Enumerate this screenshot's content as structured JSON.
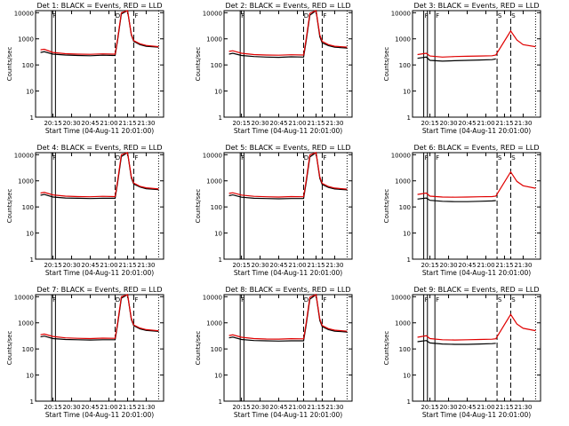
{
  "colors": {
    "events": "#000000",
    "lld": "#e00000",
    "axes": "#000000",
    "background": "#ffffff"
  },
  "chart_data": [
    {
      "type": "line",
      "title": "Det 1: BLACK = Events, RED = LLD",
      "xlabel": "Start Time (04-Aug-11 20:01:00)",
      "ylabel": "Counts/sec",
      "xlim": [
        "20:01",
        "21:44"
      ],
      "ylim": [
        1,
        12000
      ],
      "yscale": "log",
      "xticks": [
        "20:15",
        "20:30",
        "20:45",
        "21:00",
        "21:15",
        "21:30"
      ],
      "yticks": [
        "1",
        "10",
        "100",
        "1000",
        "10000"
      ],
      "markers": [
        "F",
        "D",
        "F"
      ],
      "series": [
        {
          "name": "Events",
          "x": [
            "20:05",
            "20:08",
            "20:15",
            "20:25",
            "20:35",
            "20:45",
            "20:55",
            "21:05",
            "21:07",
            "21:10",
            "21:15",
            "21:18",
            "21:20",
            "21:25",
            "21:30",
            "21:40"
          ],
          "y": [
            300,
            320,
            260,
            240,
            230,
            225,
            235,
            230,
            900,
            9000,
            12000,
            1400,
            800,
            600,
            520,
            480
          ]
        },
        {
          "name": "LLD",
          "x": [
            "20:05",
            "20:08",
            "20:15",
            "20:25",
            "20:35",
            "20:45",
            "20:55",
            "21:05",
            "21:07",
            "21:10",
            "21:15",
            "21:18",
            "21:20",
            "21:25",
            "21:30",
            "21:40"
          ],
          "y": [
            380,
            400,
            300,
            270,
            260,
            255,
            265,
            260,
            1000,
            10000,
            12000,
            1500,
            850,
            650,
            560,
            500
          ]
        }
      ],
      "dashed_lines": [
        "21:05",
        "21:20",
        "21:40"
      ],
      "solid_lines": [
        "20:14",
        "20:17"
      ]
    },
    {
      "type": "line",
      "title": "Det 2: BLACK = Events, RED = LLD",
      "xlabel": "Start Time (04-Aug-11 20:01:00)",
      "ylabel": "Counts/sec",
      "xlim": [
        "20:01",
        "21:44"
      ],
      "ylim": [
        1,
        12000
      ],
      "yscale": "log",
      "xticks": [
        "20:15",
        "20:30",
        "20:45",
        "21:00",
        "21:15",
        "21:30"
      ],
      "yticks": [
        "1",
        "10",
        "100",
        "1000",
        "10000"
      ],
      "markers": [
        "F",
        "D",
        "F"
      ],
      "series": [
        {
          "name": "Events",
          "x": [
            "20:05",
            "20:08",
            "20:15",
            "20:25",
            "20:35",
            "20:45",
            "20:55",
            "21:05",
            "21:07",
            "21:10",
            "21:15",
            "21:18",
            "21:20",
            "21:25",
            "21:30",
            "21:40"
          ],
          "y": [
            260,
            280,
            230,
            210,
            200,
            195,
            205,
            200,
            800,
            8000,
            12000,
            1200,
            700,
            550,
            480,
            440
          ]
        },
        {
          "name": "LLD",
          "x": [
            "20:05",
            "20:08",
            "20:15",
            "20:25",
            "20:35",
            "20:45",
            "20:55",
            "21:05",
            "21:07",
            "21:10",
            "21:15",
            "21:18",
            "21:20",
            "21:25",
            "21:30",
            "21:40"
          ],
          "y": [
            330,
            350,
            280,
            250,
            240,
            235,
            245,
            240,
            950,
            9500,
            12000,
            1400,
            800,
            600,
            520,
            480
          ]
        }
      ],
      "dashed_lines": [
        "21:05",
        "21:20",
        "21:40"
      ],
      "solid_lines": [
        "20:14",
        "20:17"
      ]
    },
    {
      "type": "line",
      "title": "Det 3: BLACK = Events, RED = LLD",
      "xlabel": "Start Time (04-Aug-11 20:01:00)",
      "ylabel": "Counts/sec",
      "xlim": [
        "20:01",
        "21:44"
      ],
      "ylim": [
        1,
        12000
      ],
      "yscale": "log",
      "xticks": [
        "20:15",
        "20:30",
        "20:45",
        "21:00",
        "21:15",
        "21:30"
      ],
      "yticks": [
        "1",
        "10",
        "100",
        "1000",
        "10000"
      ],
      "markers": [
        "F",
        "F",
        "S",
        "S"
      ],
      "series": [
        {
          "name": "Events",
          "x": [
            "20:05",
            "20:12",
            "20:15",
            "20:25",
            "20:35",
            "20:45",
            "20:55",
            "21:05",
            "21:08"
          ],
          "y": [
            180,
            200,
            150,
            140,
            145,
            150,
            155,
            160,
            170
          ]
        },
        {
          "name": "LLD",
          "x": [
            "20:05",
            "20:12",
            "20:15",
            "20:25",
            "20:35",
            "20:45",
            "20:55",
            "21:05",
            "21:08",
            "21:20",
            "21:25",
            "21:30",
            "21:40"
          ],
          "y": [
            250,
            280,
            220,
            200,
            210,
            215,
            220,
            225,
            240,
            2000,
            900,
            600,
            500
          ]
        }
      ],
      "dashed_lines": [
        "21:09",
        "21:20",
        "21:40"
      ],
      "solid_lines": [
        "20:10",
        "20:13",
        "20:19"
      ]
    },
    {
      "type": "line",
      "title": "Det 4: BLACK = Events, RED = LLD",
      "xlabel": "Start Time (04-Aug-11 20:01:00)",
      "ylabel": "Counts/sec",
      "xlim": [
        "20:01",
        "21:44"
      ],
      "ylim": [
        1,
        12000
      ],
      "yscale": "log",
      "xticks": [
        "20:15",
        "20:30",
        "20:45",
        "21:00",
        "21:15",
        "21:30"
      ],
      "yticks": [
        "1",
        "10",
        "100",
        "1000",
        "10000"
      ],
      "markers": [
        "F",
        "D",
        "F"
      ],
      "series": [
        {
          "name": "Events",
          "x": [
            "20:05",
            "20:08",
            "20:15",
            "20:25",
            "20:35",
            "20:45",
            "20:55",
            "21:05",
            "21:07",
            "21:10",
            "21:15",
            "21:18",
            "21:20",
            "21:25",
            "21:30",
            "21:40"
          ],
          "y": [
            280,
            300,
            240,
            220,
            215,
            210,
            215,
            215,
            850,
            8500,
            12000,
            1300,
            750,
            580,
            500,
            460
          ]
        },
        {
          "name": "LLD",
          "x": [
            "20:05",
            "20:08",
            "20:15",
            "20:25",
            "20:35",
            "20:45",
            "20:55",
            "21:05",
            "21:07",
            "21:10",
            "21:15",
            "21:18",
            "21:20",
            "21:25",
            "21:30",
            "21:40"
          ],
          "y": [
            340,
            360,
            290,
            260,
            250,
            245,
            255,
            250,
            1000,
            10000,
            12000,
            1450,
            820,
            620,
            540,
            490
          ]
        }
      ],
      "dashed_lines": [
        "21:05",
        "21:20",
        "21:40"
      ],
      "solid_lines": [
        "20:14",
        "20:17"
      ]
    },
    {
      "type": "line",
      "title": "Det 5: BLACK = Events, RED = LLD",
      "xlabel": "Start Time (04-Aug-11 20:01:00)",
      "ylabel": "Counts/sec",
      "xlim": [
        "20:01",
        "21:44"
      ],
      "ylim": [
        1,
        12000
      ],
      "yscale": "log",
      "xticks": [
        "20:15",
        "20:30",
        "20:45",
        "21:00",
        "21:15",
        "21:30"
      ],
      "yticks": [
        "1",
        "10",
        "100",
        "1000",
        "10000"
      ],
      "markers": [
        "F",
        "D",
        "F"
      ],
      "series": [
        {
          "name": "Events",
          "x": [
            "20:05",
            "20:08",
            "20:15",
            "20:25",
            "20:35",
            "20:45",
            "20:55",
            "21:05",
            "21:07",
            "21:10",
            "21:15",
            "21:18",
            "21:20",
            "21:25",
            "21:30",
            "21:40"
          ],
          "y": [
            270,
            290,
            235,
            215,
            210,
            205,
            210,
            210,
            820,
            8200,
            12000,
            1250,
            720,
            560,
            490,
            450
          ]
        },
        {
          "name": "LLD",
          "x": [
            "20:05",
            "20:08",
            "20:15",
            "20:25",
            "20:35",
            "20:45",
            "20:55",
            "21:05",
            "21:07",
            "21:10",
            "21:15",
            "21:18",
            "21:20",
            "21:25",
            "21:30",
            "21:40"
          ],
          "y": [
            330,
            350,
            285,
            255,
            245,
            240,
            250,
            245,
            980,
            9800,
            12000,
            1420,
            800,
            610,
            530,
            480
          ]
        }
      ],
      "dashed_lines": [
        "21:05",
        "21:20",
        "21:40"
      ],
      "solid_lines": [
        "20:14",
        "20:17"
      ]
    },
    {
      "type": "line",
      "title": "Det 6: BLACK = Events, RED = LLD",
      "xlabel": "Start Time (04-Aug-11 20:01:00)",
      "ylabel": "Counts/sec",
      "xlim": [
        "20:01",
        "21:44"
      ],
      "ylim": [
        1,
        12000
      ],
      "yscale": "log",
      "xticks": [
        "20:15",
        "20:30",
        "20:45",
        "21:00",
        "21:15",
        "21:30"
      ],
      "yticks": [
        "1",
        "10",
        "100",
        "1000",
        "10000"
      ],
      "markers": [
        "F",
        "F",
        "S",
        "S"
      ],
      "series": [
        {
          "name": "Events",
          "x": [
            "20:05",
            "20:12",
            "20:15",
            "20:25",
            "20:35",
            "20:45",
            "20:55",
            "21:05",
            "21:08"
          ],
          "y": [
            200,
            220,
            180,
            165,
            160,
            160,
            165,
            170,
            175
          ]
        },
        {
          "name": "LLD",
          "x": [
            "20:05",
            "20:12",
            "20:15",
            "20:25",
            "20:35",
            "20:45",
            "20:55",
            "21:05",
            "21:08",
            "21:20",
            "21:25",
            "21:30",
            "21:40"
          ],
          "y": [
            300,
            340,
            260,
            240,
            235,
            240,
            245,
            250,
            260,
            2200,
            950,
            650,
            520
          ]
        }
      ],
      "dashed_lines": [
        "21:09",
        "21:20",
        "21:40"
      ],
      "solid_lines": [
        "20:10",
        "20:13",
        "20:19"
      ]
    },
    {
      "type": "line",
      "title": "Det 7: BLACK = Events, RED = LLD",
      "xlabel": "Start Time (04-Aug-11 20:01:00)",
      "ylabel": "Counts/sec",
      "xlim": [
        "20:01",
        "21:44"
      ],
      "ylim": [
        1,
        12000
      ],
      "yscale": "log",
      "xticks": [
        "20:15",
        "20:30",
        "20:45",
        "21:00",
        "21:15",
        "21:30"
      ],
      "yticks": [
        "1",
        "10",
        "100",
        "1000",
        "10000"
      ],
      "markers": [
        "F",
        "D",
        "F"
      ],
      "series": [
        {
          "name": "Events",
          "x": [
            "20:05",
            "20:08",
            "20:15",
            "20:25",
            "20:35",
            "20:45",
            "20:55",
            "21:05",
            "21:07",
            "21:10",
            "21:15",
            "21:18",
            "21:20",
            "21:25",
            "21:30",
            "21:40"
          ],
          "y": [
            290,
            310,
            250,
            230,
            225,
            220,
            225,
            225,
            880,
            8800,
            12000,
            1350,
            780,
            590,
            510,
            470
          ]
        },
        {
          "name": "LLD",
          "x": [
            "20:05",
            "20:08",
            "20:15",
            "20:25",
            "20:35",
            "20:45",
            "20:55",
            "21:05",
            "21:07",
            "21:10",
            "21:15",
            "21:18",
            "21:20",
            "21:25",
            "21:30",
            "21:40"
          ],
          "y": [
            350,
            370,
            300,
            265,
            255,
            250,
            260,
            255,
            1000,
            10000,
            12000,
            1480,
            830,
            630,
            550,
            495
          ]
        }
      ],
      "dashed_lines": [
        "21:05",
        "21:20",
        "21:40"
      ],
      "solid_lines": [
        "20:14",
        "20:17"
      ]
    },
    {
      "type": "line",
      "title": "Det 8: BLACK = Events, RED = LLD",
      "xlabel": "Start Time (04-Aug-11 20:01:00)",
      "ylabel": "Counts/sec",
      "xlim": [
        "20:01",
        "21:44"
      ],
      "ylim": [
        1,
        12000
      ],
      "yscale": "log",
      "xticks": [
        "20:15",
        "20:30",
        "20:45",
        "21:00",
        "21:15",
        "21:30"
      ],
      "yticks": [
        "1",
        "10",
        "100",
        "1000",
        "10000"
      ],
      "markers": [
        "F",
        "D",
        "F"
      ],
      "series": [
        {
          "name": "Events",
          "x": [
            "20:05",
            "20:08",
            "20:15",
            "20:25",
            "20:35",
            "20:45",
            "20:55",
            "21:05",
            "21:07",
            "21:10",
            "21:15",
            "21:18",
            "21:20",
            "21:25",
            "21:30",
            "21:40"
          ],
          "y": [
            265,
            285,
            230,
            210,
            205,
            200,
            205,
            205,
            800,
            8000,
            12000,
            1230,
            710,
            550,
            480,
            445
          ]
        },
        {
          "name": "LLD",
          "x": [
            "20:05",
            "20:08",
            "20:15",
            "20:25",
            "20:35",
            "20:45",
            "20:55",
            "21:05",
            "21:07",
            "21:10",
            "21:15",
            "21:18",
            "21:20",
            "21:25",
            "21:30",
            "21:40"
          ],
          "y": [
            325,
            345,
            280,
            250,
            240,
            238,
            248,
            243,
            960,
            9600,
            12000,
            1400,
            790,
            600,
            525,
            478
          ]
        }
      ],
      "dashed_lines": [
        "21:05",
        "21:20",
        "21:40"
      ],
      "solid_lines": [
        "20:14",
        "20:17"
      ]
    },
    {
      "type": "line",
      "title": "Det 9: BLACK = Events, RED = LLD",
      "xlabel": "Start Time (04-Aug-11 20:01:00)",
      "ylabel": "Counts/sec",
      "xlim": [
        "20:01",
        "21:44"
      ],
      "ylim": [
        1,
        12000
      ],
      "yscale": "log",
      "xticks": [
        "20:15",
        "20:30",
        "20:45",
        "21:00",
        "21:15",
        "21:30"
      ],
      "yticks": [
        "1",
        "10",
        "100",
        "1000",
        "10000"
      ],
      "markers": [
        "F",
        "F",
        "S",
        "S"
      ],
      "series": [
        {
          "name": "Events",
          "x": [
            "20:05",
            "20:12",
            "20:15",
            "20:25",
            "20:35",
            "20:45",
            "20:55",
            "21:05",
            "21:08"
          ],
          "y": [
            190,
            210,
            170,
            155,
            150,
            150,
            155,
            160,
            165
          ]
        },
        {
          "name": "LLD",
          "x": [
            "20:05",
            "20:12",
            "20:15",
            "20:25",
            "20:35",
            "20:45",
            "20:55",
            "21:05",
            "21:08",
            "21:20",
            "21:25",
            "21:30",
            "21:40"
          ],
          "y": [
            280,
            320,
            250,
            225,
            220,
            225,
            230,
            235,
            245,
            2100,
            900,
            620,
            500
          ]
        }
      ],
      "dashed_lines": [
        "21:09",
        "21:20",
        "21:40"
      ],
      "solid_lines": [
        "20:10",
        "20:13",
        "20:19"
      ]
    }
  ]
}
